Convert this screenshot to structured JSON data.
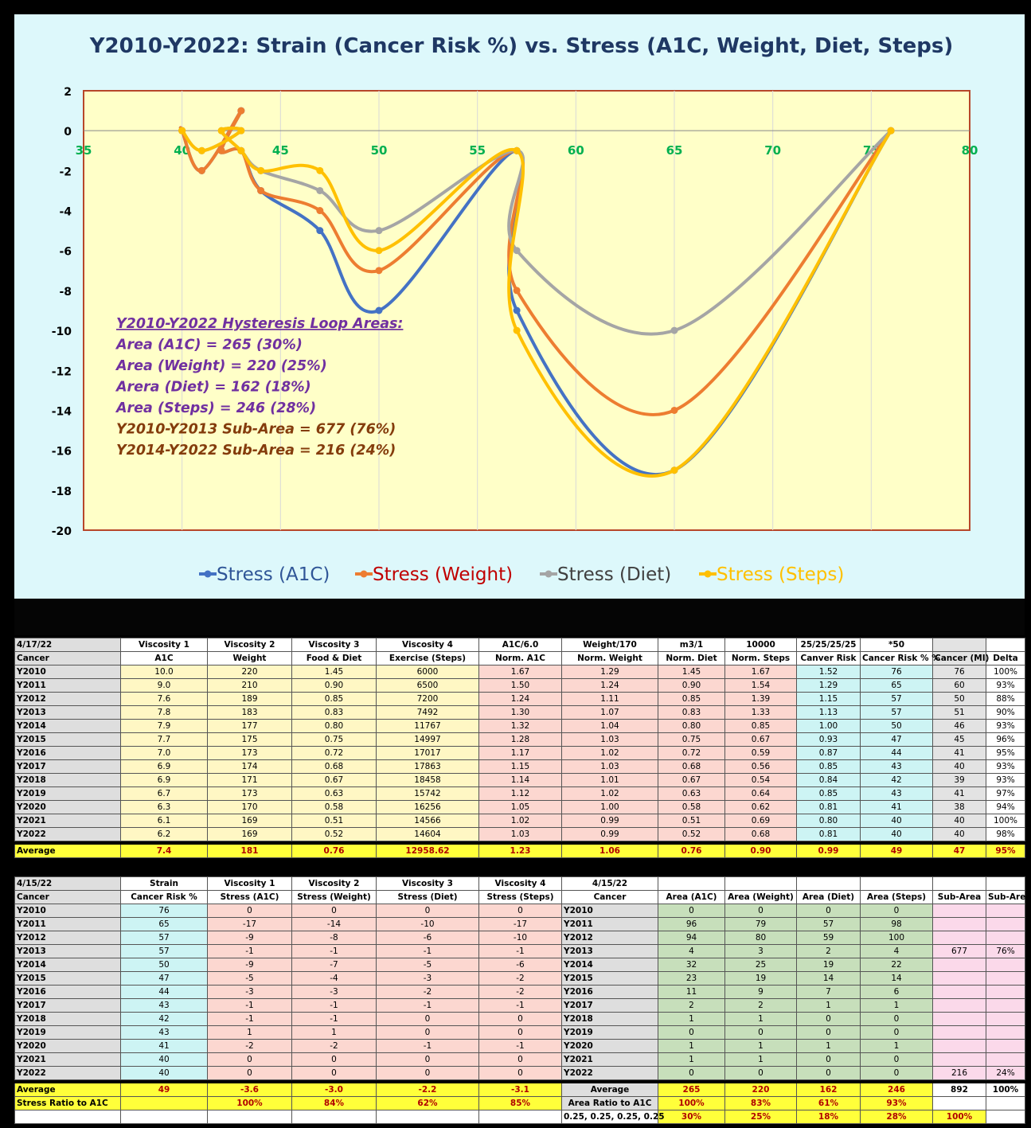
{
  "chart_data": {
    "type": "scatter",
    "title": "Y2010-Y2022:  Strain (Cancer Risk %) vs. Stress (A1C, Weight, Diet, Steps)",
    "xlim": [
      35,
      80
    ],
    "ylim": [
      -20,
      2
    ],
    "x_ticks": [
      35,
      40,
      45,
      50,
      55,
      60,
      65,
      70,
      75,
      80
    ],
    "y_ticks": [
      2,
      0,
      -2,
      -4,
      -6,
      -8,
      -10,
      -12,
      -14,
      -16,
      -18,
      -20
    ],
    "grid": "vertical",
    "legend_position": "bottom",
    "x": [
      76,
      65,
      57,
      57,
      50,
      47,
      44,
      43,
      42,
      43,
      41,
      40,
      40
    ],
    "series": [
      {
        "name": "Stress (A1C)",
        "color": "#4472c4",
        "values": [
          0,
          -17,
          -9,
          -1,
          -9,
          -5,
          -3,
          -1,
          -1,
          1,
          -2,
          0,
          0
        ]
      },
      {
        "name": "Stress (Weight)",
        "color": "#ed7d31",
        "values": [
          0,
          -14,
          -8,
          -1,
          -7,
          -4,
          -3,
          -1,
          -1,
          1,
          -2,
          0,
          0
        ]
      },
      {
        "name": "Stress (Diet)",
        "color": "#a5a5a5",
        "values": [
          0,
          -10,
          -6,
          -1,
          -5,
          -3,
          -2,
          -1,
          0,
          0,
          -1,
          0,
          0
        ]
      },
      {
        "name": "Stress (Steps)",
        "color": "#ffc000",
        "values": [
          0,
          -17,
          -10,
          -1,
          -6,
          -2,
          -2,
          -1,
          0,
          0,
          -1,
          0,
          0
        ]
      }
    ],
    "annotations": [
      {
        "text": "Y2010-Y2022 Hysteresis Loop Areas:",
        "color": "#7030a0",
        "underline": true
      },
      {
        "text": "Area (A1C) = 265 (30%)",
        "color": "#7030a0"
      },
      {
        "text": "Area (Weight) = 220 (25%)",
        "color": "#7030a0"
      },
      {
        "text": "Arera (Diet) = 162 (18%)",
        "color": "#7030a0"
      },
      {
        "text": "Area (Steps) = 246 (28%)",
        "color": "#7030a0"
      },
      {
        "text": "Y2010-Y2013 Sub-Area = 677 (76%)",
        "color": "#843c0c"
      },
      {
        "text": "Y2014-Y2022 Sub-Area = 216 (24%)",
        "color": "#843c0c"
      }
    ]
  },
  "table1": {
    "head1": [
      "4/17/22",
      "Viscosity 1",
      "Viscosity 2",
      "Viscosity 3",
      "Viscosity 4",
      "A1C/6.0",
      "Weight/170",
      "m3/1",
      "10000",
      "25/25/25/25",
      "*50",
      "",
      ""
    ],
    "head2": [
      "Cancer",
      "A1C",
      "Weight",
      "Food & Diet",
      "Exercise (Steps)",
      "Norm. A1C",
      "Norm. Weight",
      "Norm. Diet",
      "Norm. Steps",
      "Canver Risk",
      "Cancer Risk % %",
      "Cancer (MI)",
      "Delta"
    ],
    "rows": [
      [
        "Y2010",
        "10.0",
        "220",
        "1.45",
        "6000",
        "1.67",
        "1.29",
        "1.45",
        "1.67",
        "1.52",
        "76",
        "76",
        "100%"
      ],
      [
        "Y2011",
        "9.0",
        "210",
        "0.90",
        "6500",
        "1.50",
        "1.24",
        "0.90",
        "1.54",
        "1.29",
        "65",
        "60",
        "93%"
      ],
      [
        "Y2012",
        "7.6",
        "189",
        "0.85",
        "7200",
        "1.24",
        "1.11",
        "0.85",
        "1.39",
        "1.15",
        "57",
        "50",
        "88%"
      ],
      [
        "Y2013",
        "7.8",
        "183",
        "0.83",
        "7492",
        "1.30",
        "1.07",
        "0.83",
        "1.33",
        "1.13",
        "57",
        "51",
        "90%"
      ],
      [
        "Y2014",
        "7.9",
        "177",
        "0.80",
        "11767",
        "1.32",
        "1.04",
        "0.80",
        "0.85",
        "1.00",
        "50",
        "46",
        "93%"
      ],
      [
        "Y2015",
        "7.7",
        "175",
        "0.75",
        "14997",
        "1.28",
        "1.03",
        "0.75",
        "0.67",
        "0.93",
        "47",
        "45",
        "96%"
      ],
      [
        "Y2016",
        "7.0",
        "173",
        "0.72",
        "17017",
        "1.17",
        "1.02",
        "0.72",
        "0.59",
        "0.87",
        "44",
        "41",
        "95%"
      ],
      [
        "Y2017",
        "6.9",
        "174",
        "0.68",
        "17863",
        "1.15",
        "1.03",
        "0.68",
        "0.56",
        "0.85",
        "43",
        "40",
        "93%"
      ],
      [
        "Y2018",
        "6.9",
        "171",
        "0.67",
        "18458",
        "1.14",
        "1.01",
        "0.67",
        "0.54",
        "0.84",
        "42",
        "39",
        "93%"
      ],
      [
        "Y2019",
        "6.7",
        "173",
        "0.63",
        "15742",
        "1.12",
        "1.02",
        "0.63",
        "0.64",
        "0.85",
        "43",
        "41",
        "97%"
      ],
      [
        "Y2020",
        "6.3",
        "170",
        "0.58",
        "16256",
        "1.05",
        "1.00",
        "0.58",
        "0.62",
        "0.81",
        "41",
        "38",
        "94%"
      ],
      [
        "Y2021",
        "6.1",
        "169",
        "0.51",
        "14566",
        "1.02",
        "0.99",
        "0.51",
        "0.69",
        "0.80",
        "40",
        "40",
        "100%"
      ],
      [
        "Y2022",
        "6.2",
        "169",
        "0.52",
        "14604",
        "1.03",
        "0.99",
        "0.52",
        "0.68",
        "0.81",
        "40",
        "40",
        "98%"
      ]
    ],
    "avg": [
      "Average",
      "7.4",
      "181",
      "0.76",
      "12958.62",
      "1.23",
      "1.06",
      "0.76",
      "0.90",
      "0.99",
      "49",
      "47",
      "95%"
    ]
  },
  "table2": {
    "head1": [
      "4/15/22",
      "Strain",
      "Viscosity 1",
      "Viscosity 2",
      "Viscosity 3",
      "Viscosity 4",
      "4/15/22",
      "",
      "",
      "",
      "",
      "",
      ""
    ],
    "head2": [
      "Cancer",
      "Cancer Risk %",
      "Stress (A1C)",
      "Stress (Weight)",
      "Stress (Diet)",
      "Stress (Steps)",
      "Cancer",
      "Area (A1C)",
      "Area (Weight)",
      "Area (Diet)",
      "Area (Steps)",
      "Sub-Area",
      "Sub-Area"
    ],
    "rows": [
      [
        "Y2010",
        "76",
        "0",
        "0",
        "0",
        "0",
        "Y2010",
        "0",
        "0",
        "0",
        "0",
        "",
        ""
      ],
      [
        "Y2011",
        "65",
        "-17",
        "-14",
        "-10",
        "-17",
        "Y2011",
        "96",
        "79",
        "57",
        "98",
        "",
        ""
      ],
      [
        "Y2012",
        "57",
        "-9",
        "-8",
        "-6",
        "-10",
        "Y2012",
        "94",
        "80",
        "59",
        "100",
        "",
        ""
      ],
      [
        "Y2013",
        "57",
        "-1",
        "-1",
        "-1",
        "-1",
        "Y2013",
        "4",
        "3",
        "2",
        "4",
        "677",
        "76%"
      ],
      [
        "Y2014",
        "50",
        "-9",
        "-7",
        "-5",
        "-6",
        "Y2014",
        "32",
        "25",
        "19",
        "22",
        "",
        ""
      ],
      [
        "Y2015",
        "47",
        "-5",
        "-4",
        "-3",
        "-2",
        "Y2015",
        "23",
        "19",
        "14",
        "14",
        "",
        ""
      ],
      [
        "Y2016",
        "44",
        "-3",
        "-3",
        "-2",
        "-2",
        "Y2016",
        "11",
        "9",
        "7",
        "6",
        "",
        ""
      ],
      [
        "Y2017",
        "43",
        "-1",
        "-1",
        "-1",
        "-1",
        "Y2017",
        "2",
        "2",
        "1",
        "1",
        "",
        ""
      ],
      [
        "Y2018",
        "42",
        "-1",
        "-1",
        "0",
        "0",
        "Y2018",
        "1",
        "1",
        "0",
        "0",
        "",
        ""
      ],
      [
        "Y2019",
        "43",
        "1",
        "1",
        "0",
        "0",
        "Y2019",
        "0",
        "0",
        "0",
        "0",
        "",
        ""
      ],
      [
        "Y2020",
        "41",
        "-2",
        "-2",
        "-1",
        "-1",
        "Y2020",
        "1",
        "1",
        "1",
        "1",
        "",
        ""
      ],
      [
        "Y2021",
        "40",
        "0",
        "0",
        "0",
        "0",
        "Y2021",
        "1",
        "1",
        "0",
        "0",
        "",
        ""
      ],
      [
        "Y2022",
        "40",
        "0",
        "0",
        "0",
        "0",
        "Y2022",
        "0",
        "0",
        "0",
        "0",
        "216",
        "24%"
      ]
    ],
    "avg": [
      "Average",
      "49",
      "-3.6",
      "-3.0",
      "-2.2",
      "-3.1",
      "Average",
      "265",
      "220",
      "162",
      "246",
      "892",
      "100%"
    ],
    "ratio": [
      "Stress Ratio to A1C",
      "",
      "100%",
      "84%",
      "62%",
      "85%",
      "Area Ratio to A1C",
      "100%",
      "83%",
      "61%",
      "93%",
      "",
      ""
    ],
    "weights": [
      "",
      "",
      "",
      "",
      "",
      "",
      "0.25, 0.25, 0.25, 0.25",
      "30%",
      "25%",
      "18%",
      "28%",
      "100%",
      ""
    ]
  }
}
